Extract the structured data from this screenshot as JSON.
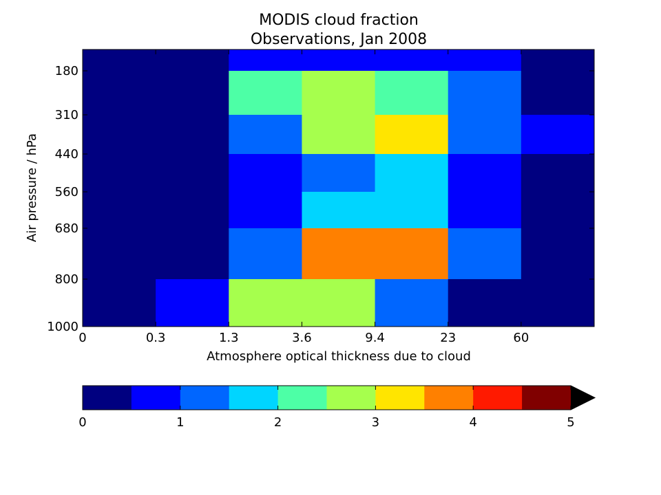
{
  "chart_data": {
    "type": "heatmap",
    "title": "MODIS cloud fraction",
    "subtitle": "Observations, Jan 2008",
    "xlabel": "Atmosphere optical thickness due to cloud",
    "ylabel": "Air pressure / hPa",
    "x_tick_labels": [
      "0",
      "0.3",
      "1.3",
      "3.6",
      "9.4",
      "23",
      "60"
    ],
    "y_tick_labels": [
      "180",
      "310",
      "440",
      "560",
      "680",
      "800",
      "1000"
    ],
    "x_bins": 7,
    "y_bins": [
      "top",
      "180-310",
      "310-440",
      "440-560",
      "560-680",
      "680-800",
      "800-1000"
    ],
    "values": [
      [
        0.0,
        0.0,
        0.7,
        0.7,
        0.7,
        0.7,
        0.0
      ],
      [
        0.0,
        0.0,
        2.3,
        2.8,
        2.3,
        1.3,
        0.0
      ],
      [
        0.0,
        0.0,
        1.3,
        2.8,
        3.2,
        1.3,
        0.7
      ],
      [
        0.0,
        0.0,
        0.7,
        1.3,
        1.8,
        0.7,
        0.0
      ],
      [
        0.0,
        0.0,
        0.7,
        1.8,
        1.8,
        0.7,
        0.0
      ],
      [
        0.0,
        0.0,
        1.3,
        3.7,
        3.7,
        1.3,
        0.0
      ],
      [
        0.0,
        0.7,
        2.8,
        2.8,
        1.3,
        0.0,
        0.0
      ]
    ],
    "colorbar": {
      "min": 0,
      "max": 5,
      "ticks": [
        0,
        1,
        2,
        3,
        4,
        5
      ],
      "extend": "max",
      "extend_color": "#000000",
      "colors": [
        "#000080",
        "#0000ff",
        "#0066ff",
        "#00d5ff",
        "#4dffa6",
        "#a6ff4d",
        "#ffe500",
        "#ff8000",
        "#ff1a00",
        "#800000"
      ]
    },
    "grid": false,
    "legend": "colorbar-bottom"
  }
}
